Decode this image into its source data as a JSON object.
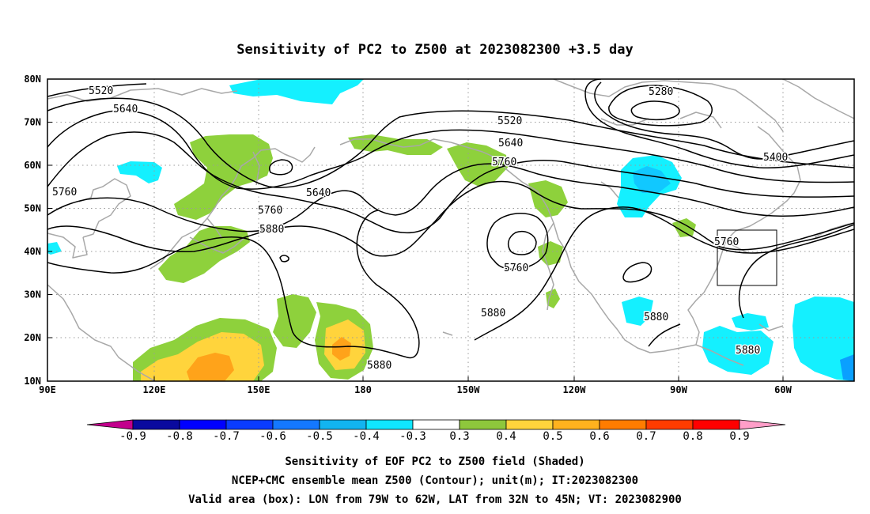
{
  "title": "Sensitivity of PC2 to Z500 at 2023082300 +3.5 day",
  "map": {
    "lon_labels": [
      "90E",
      "120E",
      "150E",
      "180",
      "150W",
      "120W",
      "90W",
      "60W"
    ],
    "lat_labels": [
      "80N",
      "70N",
      "60N",
      "50N",
      "40N",
      "30N",
      "20N",
      "10N"
    ],
    "contour_labels": [
      "5520",
      "5640",
      "5760",
      "5640",
      "5760",
      "5880",
      "5520",
      "5640",
      "5760",
      "5760",
      "5880",
      "5880",
      "5280",
      "5400",
      "5760",
      "5880",
      "5880"
    ],
    "valid_box": {
      "lon_range": [
        "79W",
        "62W"
      ],
      "lat_range": [
        "32N",
        "45N"
      ]
    },
    "colors": {
      "coast": "#a8a8a8",
      "contour": "#000000",
      "grid": "#9a9a9a",
      "pos_03": "#8ed13c",
      "pos_04": "#ffd43c",
      "pos_05": "#ffa31a",
      "pos_06": "#ff7a00",
      "neg_03": "#14f0ff",
      "neg_04": "#11d0ff",
      "neg_05": "#0aa0ff"
    }
  },
  "colorbar": {
    "labels": [
      "-0.9",
      "-0.8",
      "-0.7",
      "-0.6",
      "-0.5",
      "-0.4",
      "-0.3",
      "0.3",
      "0.4",
      "0.5",
      "0.6",
      "0.7",
      "0.8",
      "0.9"
    ],
    "colors": [
      "#c2008c",
      "#0a0a9e",
      "#0000ff",
      "#0a3cff",
      "#1478ff",
      "#12b4f0",
      "#10e6ff",
      "#ffffff",
      "#8ec73c",
      "#ffd43c",
      "#ffb21e",
      "#ff7c00",
      "#ff3c00",
      "#ff0000",
      "#ff9ec8"
    ]
  },
  "captions": [
    "Sensitivity of EOF PC2 to Z500 field (Shaded)",
    "NCEP+CMC ensemble mean Z500 (Contour); unit(m); IT:2023082300",
    "Valid area (box): LON from 79W to 62W, LAT from 32N to 45N; VT: 2023082900"
  ]
}
